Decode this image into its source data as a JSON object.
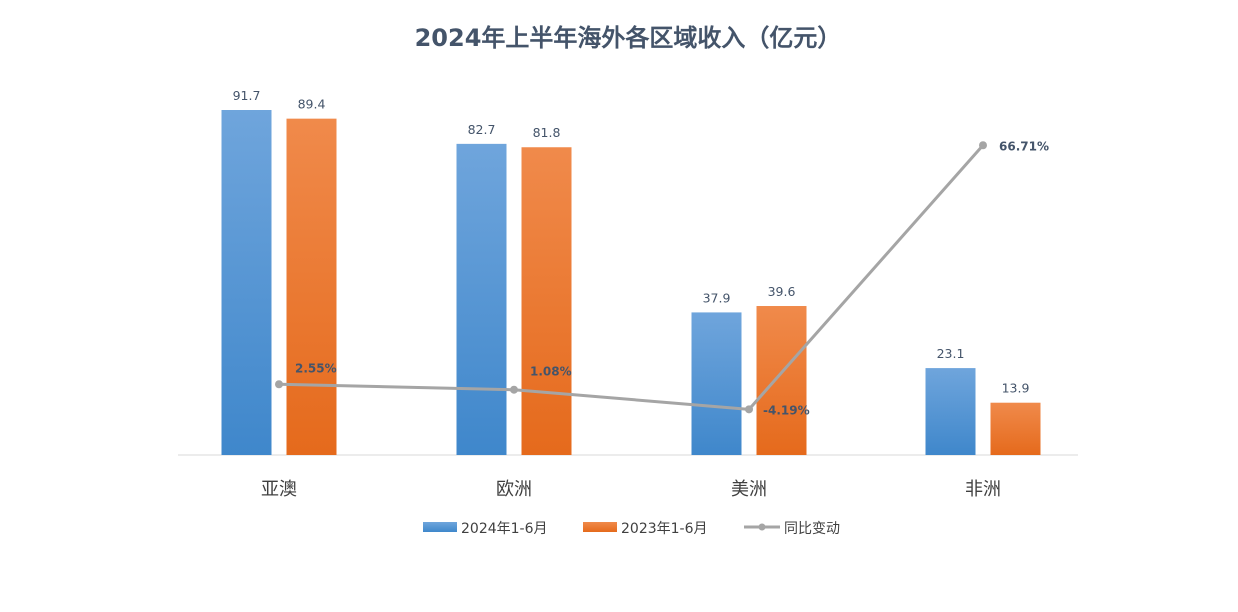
{
  "chart_data": {
    "type": "bar",
    "title": "2024年上半年海外各区域收入（亿元）",
    "categories": [
      "亚澳",
      "欧洲",
      "美洲",
      "非洲"
    ],
    "series": [
      {
        "name": "2024年1-6月",
        "type": "bar",
        "values": [
          91.7,
          82.7,
          37.9,
          23.1
        ],
        "value_labels": [
          "91.7",
          "82.7",
          "37.9",
          "23.1"
        ],
        "color": "#5B9BD5"
      },
      {
        "name": "2023年1-6月",
        "type": "bar",
        "values": [
          89.4,
          81.8,
          39.6,
          13.9
        ],
        "value_labels": [
          "89.4",
          "81.8",
          "39.6",
          "13.9"
        ],
        "color": "#ED7D31"
      },
      {
        "name": "同比变动",
        "type": "line",
        "axis": "secondary",
        "values": [
          2.55,
          1.08,
          -4.19,
          66.71
        ],
        "value_labels": [
          "2.55%",
          "1.08%",
          "-4.19%",
          "66.71%"
        ],
        "color": "#A5A5A5"
      }
    ],
    "ylim": [
      0,
      91.7
    ],
    "y2lim": [
      -10,
      70
    ],
    "grid": false,
    "legend": "bottom"
  }
}
